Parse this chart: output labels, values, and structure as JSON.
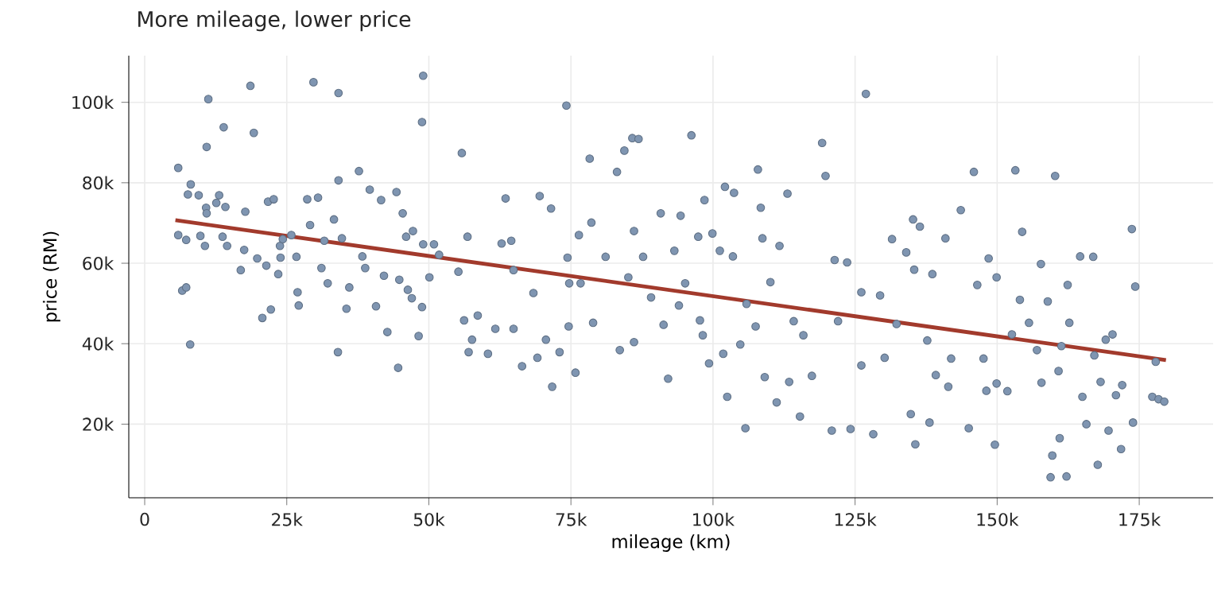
{
  "chart_data": {
    "type": "scatter",
    "title": "More mileage, lower price",
    "xlabel": "mileage (km)",
    "ylabel": "price (RM)",
    "xlim": [
      -2800,
      188000
    ],
    "ylim": [
      1700,
      111600
    ],
    "xticks": [
      0,
      {
        "value": 25000,
        "label": "25k"
      },
      {
        "value": 50000,
        "label": "50k"
      },
      {
        "value": 75000,
        "label": "75k"
      },
      {
        "value": 100000,
        "label": "100k"
      },
      {
        "value": 125000,
        "label": "125k"
      },
      {
        "value": 150000,
        "label": "150k"
      },
      {
        "value": 175000,
        "label": "175k"
      }
    ],
    "yticks": [
      {
        "value": 20000,
        "label": "20k"
      },
      {
        "value": 40000,
        "label": "40k"
      },
      {
        "value": 60000,
        "label": "60k"
      },
      {
        "value": 80000,
        "label": "80k"
      },
      {
        "value": 100000,
        "label": "100k"
      }
    ],
    "grid": true,
    "series": [
      {
        "type": "scatter",
        "marker": "circle",
        "color": "#7f95b1",
        "x": [
          5900,
          5900,
          6600,
          7300,
          7300,
          7600,
          8100,
          8000,
          9500,
          9800,
          10600,
          10800,
          10900,
          10900,
          11200,
          12600,
          13100,
          13700,
          13900,
          14200,
          14500,
          16900,
          17500,
          17700,
          18600,
          19200,
          19800,
          20700,
          21400,
          21700,
          22200,
          22700,
          23500,
          23800,
          23900,
          24300,
          25800,
          26700,
          26900,
          27100,
          28600,
          29100,
          29700,
          30500,
          31100,
          31600,
          32200,
          33300,
          34000,
          34100,
          34100,
          34700,
          35500,
          36000,
          37700,
          38300,
          38800,
          39600,
          40700,
          41600,
          42100,
          42700,
          44300,
          44600,
          44800,
          45400,
          46000,
          46300,
          47000,
          47200,
          48200,
          48800,
          49000,
          48800,
          49000,
          50100,
          50900,
          51800,
          55200,
          55800,
          56200,
          56800,
          57000,
          57600,
          58600,
          60400,
          61700,
          62800,
          63500,
          64500,
          64900,
          64900,
          66400,
          68400,
          69100,
          69500,
          70600,
          71500,
          71700,
          73000,
          74200,
          74400,
          74600,
          74700,
          75800,
          76400,
          76700,
          78300,
          78600,
          78900,
          81100,
          83100,
          83600,
          84400,
          85100,
          85800,
          86900,
          86100,
          86100,
          87700,
          89100,
          90800,
          91300,
          92100,
          93200,
          94000,
          94300,
          95100,
          96200,
          97400,
          97700,
          98200,
          98500,
          99300,
          99900,
          101200,
          101800,
          102100,
          102500,
          103500,
          103700,
          104800,
          105700,
          105900,
          107500,
          107900,
          108400,
          108700,
          109100,
          110100,
          111200,
          111700,
          113100,
          113400,
          114200,
          115300,
          115900,
          117400,
          119200,
          119800,
          120900,
          121400,
          122000,
          123600,
          124200,
          126100,
          126900,
          126100,
          128200,
          129400,
          130200,
          131500,
          132300,
          134000,
          134800,
          135200,
          135400,
          135600,
          136400,
          137700,
          138600,
          138100,
          139200,
          140900,
          141400,
          141900,
          143600,
          145000,
          145900,
          146500,
          147600,
          148100,
          148500,
          149600,
          149900,
          149900,
          151800,
          152600,
          153200,
          154000,
          154400,
          155600,
          157000,
          157700,
          157800,
          158900,
          159400,
          159700,
          160200,
          160800,
          161300,
          161000,
          162200,
          162400,
          162700,
          164600,
          165000,
          165700,
          166900,
          167100,
          167700,
          168200,
          169100,
          169600,
          170300,
          170900,
          171800,
          172000,
          173700,
          173900,
          174300,
          177300,
          177900,
          178400,
          179400
        ],
        "values": [
          83700,
          67000,
          53200,
          54000,
          65800,
          77100,
          79600,
          39800,
          76900,
          66800,
          64300,
          73800,
          72400,
          88900,
          100800,
          75000,
          76900,
          66600,
          93800,
          74000,
          64300,
          58300,
          63300,
          72800,
          104100,
          92400,
          61200,
          46400,
          59400,
          75300,
          48500,
          75900,
          57300,
          64300,
          61400,
          66000,
          67000,
          61600,
          52800,
          49500,
          75900,
          69500,
          105000,
          76300,
          58800,
          65600,
          55000,
          70900,
          37900,
          102300,
          80600,
          66200,
          48700,
          54000,
          82900,
          61700,
          58800,
          78300,
          49300,
          75700,
          56900,
          42900,
          77700,
          34000,
          55900,
          72400,
          66600,
          53400,
          51300,
          68000,
          41900,
          95100,
          106600,
          49100,
          64700,
          56500,
          64700,
          62100,
          57900,
          87400,
          45800,
          66600,
          37900,
          41000,
          47000,
          37500,
          43700,
          64900,
          76100,
          65600,
          58300,
          43700,
          34400,
          52600,
          36500,
          76700,
          41000,
          73600,
          29300,
          37900,
          99200,
          61400,
          44300,
          55000,
          32800,
          67000,
          55000,
          86000,
          70100,
          45200,
          61600,
          82700,
          38400,
          88000,
          56500,
          91100,
          90900,
          68000,
          40400,
          61600,
          51500,
          72400,
          44700,
          31300,
          63100,
          49500,
          71800,
          55000,
          91800,
          66600,
          45800,
          42100,
          75700,
          35100,
          67400,
          63100,
          37500,
          79000,
          26800,
          61700,
          77500,
          39800,
          19000,
          49900,
          44300,
          83300,
          73800,
          66200,
          31700,
          55300,
          25400,
          64300,
          77300,
          30500,
          45600,
          21900,
          42100,
          32000,
          89900,
          81700,
          18400,
          60800,
          45600,
          60200,
          18800,
          52800,
          102100,
          34600,
          17500,
          52000,
          36500,
          66000,
          44900,
          62700,
          22500,
          70900,
          58400,
          15000,
          69100,
          40800,
          57300,
          20400,
          32200,
          66200,
          29300,
          36300,
          73200,
          19000,
          82700,
          54600,
          36300,
          28300,
          61200,
          14900,
          56500,
          30100,
          28200,
          42300,
          83100,
          50900,
          67800,
          45200,
          38400,
          59800,
          30300,
          50500,
          6800,
          12200,
          81700,
          33200,
          39400,
          16500,
          7000,
          54600,
          45200,
          61700,
          26800,
          20000,
          61600,
          37100,
          9900,
          30500,
          41000,
          18400,
          42300,
          27200,
          13800,
          29700,
          68500,
          20400,
          54200,
          26800,
          35500,
          26200,
          25600
        ]
      },
      {
        "type": "line",
        "line_style": "solid",
        "color": "#a23a2c",
        "x": [
          5400,
          179700
        ],
        "values": [
          70700,
          35900
        ]
      }
    ]
  }
}
